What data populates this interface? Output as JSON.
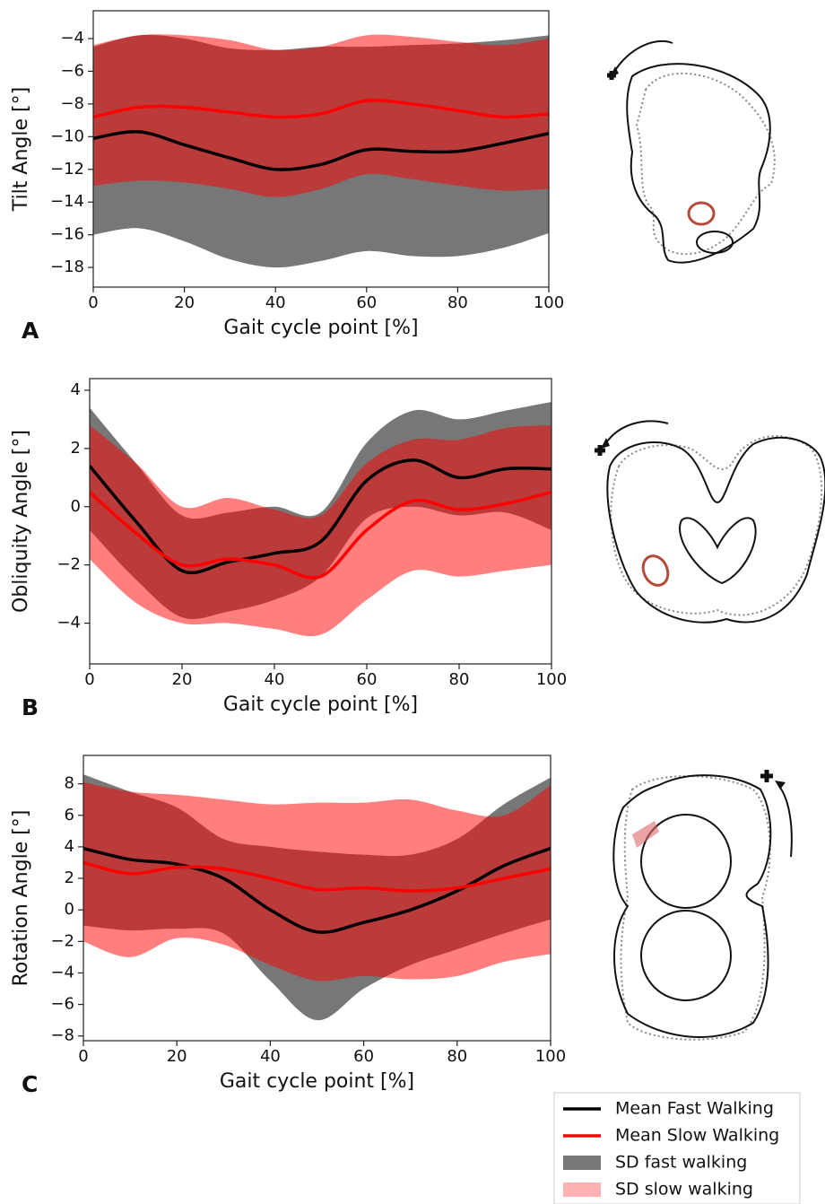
{
  "chart_data": [
    {
      "type": "line",
      "panel": "A",
      "ylabel": "Tilt Angle [°]",
      "xlabel": "Gait cycle point [%]",
      "x": [
        0,
        10,
        20,
        30,
        40,
        50,
        60,
        70,
        80,
        90,
        100
      ],
      "xlim": [
        0,
        100
      ],
      "xticks": [
        0,
        20,
        40,
        60,
        80,
        100
      ],
      "ylim": [
        -19.2,
        -2.3
      ],
      "yticks": [
        -18,
        -16,
        -14,
        -12,
        -10,
        -8,
        -6,
        -4
      ],
      "series": [
        {
          "name": "Mean Fast Walking",
          "color": "#000000",
          "values": [
            -10.1,
            -9.7,
            -10.5,
            -11.3,
            -12,
            -11.7,
            -10.8,
            -10.9,
            -10.9,
            -10.4,
            -9.8
          ]
        },
        {
          "name": "Mean Slow Walking",
          "color": "#ff0000",
          "values": [
            -8.8,
            -8.2,
            -8.2,
            -8.5,
            -8.8,
            -8.6,
            -7.8,
            -8.0,
            -8.4,
            -8.8,
            -8.6
          ]
        },
        {
          "name": "SD fast walking",
          "color": "#777777",
          "lower": [
            -16,
            -15.6,
            -16.4,
            -17.5,
            -18,
            -17.6,
            -17,
            -17.3,
            -17.3,
            -16.8,
            -15.9
          ],
          "upper": [
            -4.5,
            -3.8,
            -4.0,
            -4.6,
            -4.7,
            -4.5,
            -4.5,
            -4.4,
            -4.3,
            -4.1,
            -3.8
          ]
        },
        {
          "name": "SD slow walking",
          "color": "#ff0000",
          "lower": [
            -13,
            -12.7,
            -12.8,
            -13.2,
            -13.7,
            -13.2,
            -12.3,
            -12.6,
            -13,
            -13.3,
            -13.2
          ],
          "upper": [
            -4.4,
            -3.8,
            -3.8,
            -4.1,
            -4.7,
            -4.5,
            -3.8,
            -3.9,
            -4.2,
            -4.4,
            -4.0
          ]
        }
      ]
    },
    {
      "type": "line",
      "panel": "B",
      "ylabel": "Obliquity Angle [°]",
      "xlabel": "Gait cycle point [%]",
      "x": [
        0,
        10,
        20,
        30,
        40,
        50,
        60,
        70,
        80,
        90,
        100
      ],
      "xlim": [
        0,
        100
      ],
      "xticks": [
        0,
        20,
        40,
        60,
        80,
        100
      ],
      "ylim": [
        -5.4,
        4.4
      ],
      "yticks": [
        -4,
        -2,
        0,
        2,
        4
      ],
      "series": [
        {
          "color": "#000000",
          "values": [
            1.4,
            -0.5,
            -2.2,
            -1.9,
            -1.6,
            -1.2,
            0.9,
            1.6,
            1.0,
            1.3,
            1.3
          ]
        },
        {
          "color": "#ff0000",
          "values": [
            0.5,
            -0.9,
            -2.0,
            -1.8,
            -2.0,
            -2.4,
            -0.8,
            0.2,
            -0.1,
            0.1,
            0.5
          ]
        },
        {
          "color": "#777777",
          "lower": [
            -0.8,
            -2.5,
            -3.8,
            -3.6,
            -3.2,
            -2.4,
            -0.4,
            0,
            -0.3,
            -0.2,
            -0.8
          ],
          "upper": [
            3.4,
            1.5,
            -0.3,
            -0.2,
            0,
            -0.2,
            2.2,
            3.3,
            3.0,
            3.3,
            3.6
          ]
        },
        {
          "color": "#ff0000",
          "lower": [
            -1.8,
            -3.3,
            -4.0,
            -4.0,
            -4.2,
            -4.4,
            -3.2,
            -2.2,
            -2.4,
            -2.2,
            -2.0
          ],
          "upper": [
            2.8,
            1.5,
            0,
            0.3,
            -0.1,
            -0.3,
            1.5,
            2.3,
            2.3,
            2.7,
            2.8
          ]
        }
      ]
    },
    {
      "type": "line",
      "panel": "C",
      "ylabel": "Rotation Angle [°]",
      "xlabel": "Gait cycle point [%]",
      "x": [
        0,
        10,
        20,
        30,
        40,
        50,
        60,
        70,
        80,
        90,
        100
      ],
      "xlim": [
        0,
        100
      ],
      "xticks": [
        0,
        20,
        40,
        60,
        80,
        100
      ],
      "ylim": [
        -8.3,
        9.8
      ],
      "yticks": [
        -8,
        -6,
        -4,
        -2,
        0,
        2,
        4,
        6,
        8
      ],
      "series": [
        {
          "color": "#000000",
          "values": [
            3.9,
            3.2,
            2.9,
            2.0,
            0,
            -1.4,
            -0.8,
            0,
            1.2,
            2.8,
            3.9
          ]
        },
        {
          "color": "#ff0000",
          "values": [
            3.0,
            2.3,
            2.7,
            2.6,
            2.0,
            1.3,
            1.4,
            1.2,
            1.4,
            2.0,
            2.6
          ]
        },
        {
          "color": "#777777",
          "lower": [
            -1.0,
            -1.3,
            -1.2,
            -1.5,
            -4.5,
            -7.0,
            -5.0,
            -3.5,
            -2.5,
            -1.5,
            -0.6
          ],
          "upper": [
            8.6,
            7.5,
            6.5,
            4.5,
            4.0,
            3.7,
            3.5,
            3.5,
            4.5,
            6.7,
            8.4
          ]
        },
        {
          "color": "#ff0000",
          "lower": [
            -2.0,
            -3.0,
            -1.8,
            -2.2,
            -3.5,
            -4.5,
            -4.2,
            -4.4,
            -4.2,
            -3.3,
            -2.8
          ],
          "upper": [
            8.1,
            7.5,
            7.3,
            7.0,
            6.7,
            6.8,
            6.8,
            7.0,
            6.3,
            6.0,
            7.9
          ]
        }
      ]
    }
  ]
}
